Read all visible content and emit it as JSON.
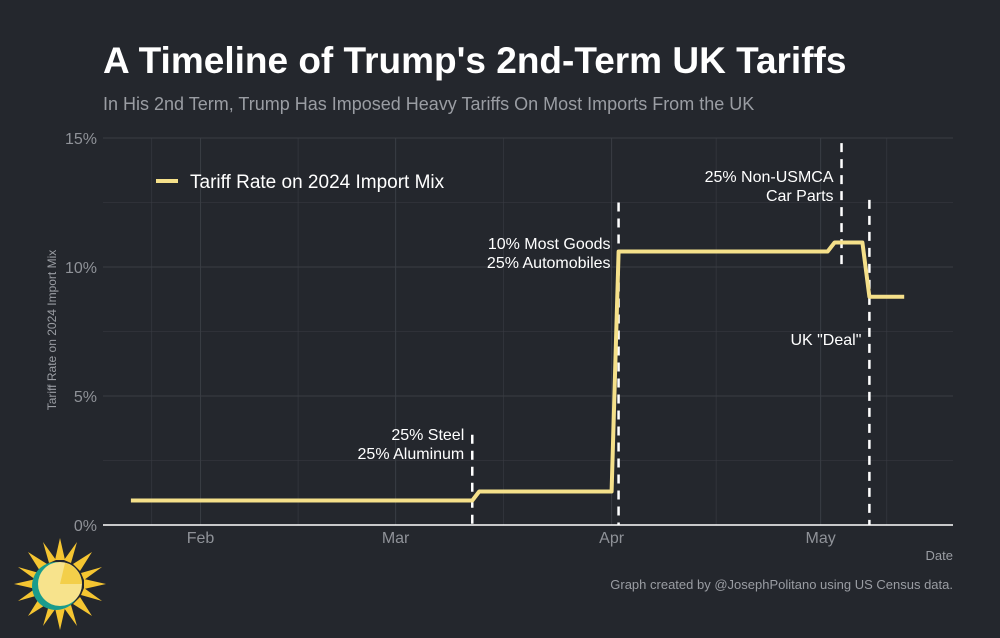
{
  "title": "A Timeline of Trump's 2nd-Term UK Tariffs",
  "subtitle": "In His 2nd Term, Trump Has Imposed Heavy Tariffs On Most Imports From the UK",
  "credit": "Graph created by @JosephPolitano using US Census data.",
  "logo_icon": "sun-logo-icon",
  "colors": {
    "background": "#24272d",
    "line": "#f5e08a",
    "grid": "#3a3d44",
    "axis": "#ffffff",
    "annotation_line": "#ffffff"
  },
  "chart_data": {
    "type": "line",
    "title": "A Timeline of Trump's 2nd-Term UK Tariffs",
    "subtitle": "In His 2nd Term, Trump Has Imposed Heavy Tariffs On Most Imports From the UK",
    "xlabel": "Date",
    "ylabel": "Tariff Rate on 2024 Import Mix",
    "xlim": [
      "2025-01-18",
      "2025-05-20"
    ],
    "ylim": [
      0,
      15
    ],
    "grid": true,
    "legend_position": "top-left",
    "x_ticks": [
      {
        "label": "Feb",
        "date": "2025-02-01"
      },
      {
        "label": "Mar",
        "date": "2025-03-01"
      },
      {
        "label": "Apr",
        "date": "2025-04-01"
      },
      {
        "label": "May",
        "date": "2025-05-01"
      }
    ],
    "y_ticks": [
      {
        "label": "0%",
        "value": 0
      },
      {
        "label": "5%",
        "value": 5
      },
      {
        "label": "10%",
        "value": 10
      },
      {
        "label": "15%",
        "value": 15
      }
    ],
    "series": [
      {
        "name": "Tariff Rate on 2024 Import Mix",
        "color": "#f5e08a",
        "x": [
          "2025-01-22",
          "2025-03-12",
          "2025-03-13",
          "2025-04-01",
          "2025-04-02",
          "2025-05-02",
          "2025-05-03",
          "2025-05-07",
          "2025-05-08",
          "2025-05-13"
        ],
        "y": [
          0.95,
          0.95,
          1.3,
          1.3,
          10.6,
          10.6,
          10.95,
          10.95,
          8.85,
          8.85
        ]
      }
    ],
    "annotations": [
      {
        "date": "2025-03-12",
        "lines": [
          "25% Steel",
          "25% Aluminum"
        ],
        "y_top": 3.5,
        "y_bottom": 0,
        "label_y": 2.8,
        "label_side": "left"
      },
      {
        "date": "2025-04-02",
        "lines": [
          "10% Most Goods",
          "25% Automobiles"
        ],
        "y_top": 12.5,
        "y_bottom": 0,
        "label_y": 10.2,
        "label_side": "left"
      },
      {
        "date": "2025-05-04",
        "lines": [
          "25% Non-USMCA",
          "Car Parts"
        ],
        "y_top": 14.8,
        "y_bottom": 10.0,
        "label_y": 12.8,
        "label_side": "left"
      },
      {
        "date": "2025-05-08",
        "lines": [
          "UK \"Deal\""
        ],
        "y_top": 12.6,
        "y_bottom": 0,
        "label_y": 7.2,
        "label_side": "left"
      }
    ]
  }
}
